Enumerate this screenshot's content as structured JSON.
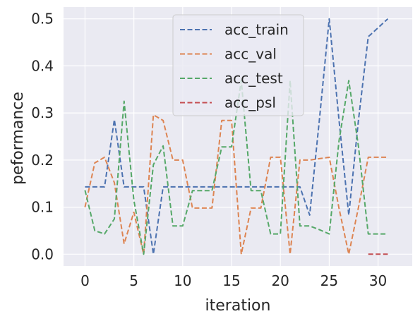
{
  "chart_data": {
    "type": "line",
    "title": "",
    "xlabel": "iteration",
    "ylabel": "peformance",
    "xlim": [
      -2.2,
      33.5
    ],
    "ylim": [
      -0.025,
      0.525
    ],
    "xticks": [
      0,
      5,
      10,
      15,
      20,
      25,
      30
    ],
    "yticks": [
      0.0,
      0.1,
      0.2,
      0.3,
      0.4,
      0.5
    ],
    "ytick_labels": [
      "0.0",
      "0.1",
      "0.2",
      "0.3",
      "0.4",
      "0.5"
    ],
    "grid": true,
    "legend_position": "top-center",
    "background": "#eaeaf2",
    "series": [
      {
        "name": "acc_train",
        "color": "#4c72b0",
        "x": [
          0,
          1,
          2,
          3,
          4,
          5,
          6,
          7,
          8,
          9,
          10,
          11,
          12,
          13,
          14,
          15,
          16,
          17,
          18,
          19,
          20,
          21,
          22,
          23,
          24,
          25,
          26,
          27,
          28,
          29,
          30,
          31
        ],
        "values": [
          0.143,
          0.143,
          0.143,
          0.286,
          0.143,
          0.143,
          0.143,
          0.0,
          0.143,
          0.143,
          0.143,
          0.143,
          0.143,
          0.143,
          0.143,
          0.143,
          0.143,
          0.143,
          0.143,
          0.143,
          0.143,
          0.143,
          0.143,
          0.083,
          0.286,
          0.5,
          0.286,
          0.083,
          0.286,
          0.462,
          0.481,
          0.5
        ]
      },
      {
        "name": "acc_val",
        "color": "#dd8452",
        "x": [
          0,
          1,
          2,
          3,
          4,
          5,
          6,
          7,
          8,
          9,
          10,
          11,
          12,
          13,
          14,
          15,
          16,
          17,
          18,
          19,
          20,
          21,
          22,
          23,
          24,
          25,
          26,
          27,
          28,
          29,
          30,
          31
        ],
        "values": [
          0.1,
          0.194,
          0.206,
          0.152,
          0.022,
          0.089,
          0.0,
          0.296,
          0.284,
          0.2,
          0.2,
          0.098,
          0.098,
          0.098,
          0.284,
          0.284,
          0.0,
          0.098,
          0.098,
          0.206,
          0.206,
          0.0,
          0.2,
          0.2,
          0.203,
          0.206,
          0.098,
          0.0,
          0.1,
          0.206,
          0.206,
          0.206
        ]
      },
      {
        "name": "acc_test",
        "color": "#55a868",
        "x": [
          0,
          1,
          2,
          3,
          4,
          5,
          6,
          7,
          8,
          9,
          10,
          11,
          12,
          13,
          14,
          15,
          16,
          17,
          18,
          19,
          20,
          21,
          22,
          23,
          24,
          25,
          26,
          27,
          28,
          29,
          30,
          31
        ],
        "values": [
          0.136,
          0.05,
          0.043,
          0.075,
          0.325,
          0.115,
          0.0,
          0.19,
          0.23,
          0.06,
          0.06,
          0.135,
          0.135,
          0.135,
          0.228,
          0.228,
          0.369,
          0.135,
          0.135,
          0.043,
          0.043,
          0.369,
          0.06,
          0.06,
          0.052,
          0.043,
          0.24,
          0.369,
          0.228,
          0.043,
          0.043,
          0.043
        ]
      },
      {
        "name": "acc_psl",
        "color": "#c44e52",
        "x": [
          29,
          30,
          31
        ],
        "values": [
          0.0,
          0.0,
          0.0
        ]
      }
    ]
  }
}
